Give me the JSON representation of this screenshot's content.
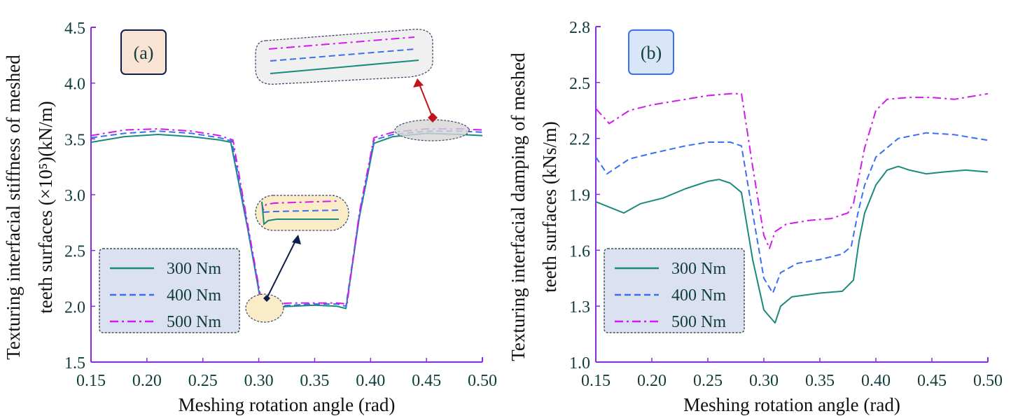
{
  "chart_data": [
    {
      "type": "line",
      "panel_label": "(a)",
      "xlabel": "Meshing rotation angle (rad)",
      "ylabel_line1": "Texturing interfacial stiffness of meshed",
      "ylabel_line2": "teeth surfaces (×10⁵)(kN/m)",
      "xlim": [
        0.15,
        0.5
      ],
      "ylim": [
        1.5,
        4.5
      ],
      "xticks": [
        "0.15",
        "0.20",
        "0.25",
        "0.30",
        "0.35",
        "0.40",
        "0.45",
        "0.50"
      ],
      "yticks": [
        "1.5",
        "2.0",
        "2.5",
        "3.0",
        "3.5",
        "4.0",
        "4.5"
      ],
      "legend": [
        "300 Nm",
        "400 Nm",
        "500 Nm"
      ],
      "legend_position": "bottom-left",
      "grid": false,
      "annotations": [
        "zoom inset near 0.45 rad (gray)",
        "zoom inset near 0.30 rad (yellow)"
      ],
      "series": [
        {
          "name": "300 Nm",
          "x": [
            0.15,
            0.18,
            0.21,
            0.24,
            0.265,
            0.275,
            0.29,
            0.303,
            0.31,
            0.33,
            0.35,
            0.37,
            0.378,
            0.39,
            0.403,
            0.42,
            0.45,
            0.48,
            0.5
          ],
          "y": [
            3.47,
            3.52,
            3.54,
            3.52,
            3.49,
            3.47,
            2.7,
            1.97,
            1.99,
            2.0,
            2.01,
            2.0,
            1.98,
            2.8,
            3.46,
            3.52,
            3.55,
            3.54,
            3.53
          ]
        },
        {
          "name": "400 Nm",
          "x": [
            0.15,
            0.18,
            0.21,
            0.24,
            0.265,
            0.276,
            0.29,
            0.303,
            0.31,
            0.33,
            0.35,
            0.37,
            0.378,
            0.39,
            0.403,
            0.42,
            0.45,
            0.48,
            0.5
          ],
          "y": [
            3.51,
            3.55,
            3.57,
            3.55,
            3.51,
            3.48,
            2.72,
            1.99,
            2.0,
            2.01,
            2.02,
            2.02,
            2.0,
            2.82,
            3.49,
            3.54,
            3.57,
            3.57,
            3.56
          ]
        },
        {
          "name": "500 Nm",
          "x": [
            0.15,
            0.18,
            0.21,
            0.24,
            0.265,
            0.277,
            0.29,
            0.303,
            0.31,
            0.33,
            0.35,
            0.37,
            0.379,
            0.39,
            0.403,
            0.42,
            0.45,
            0.48,
            0.5
          ],
          "y": [
            3.53,
            3.58,
            3.59,
            3.57,
            3.53,
            3.49,
            2.74,
            2.01,
            2.02,
            2.03,
            2.03,
            2.03,
            2.02,
            2.84,
            3.51,
            3.56,
            3.59,
            3.59,
            3.58
          ]
        }
      ]
    },
    {
      "type": "line",
      "panel_label": "(b)",
      "xlabel": "Meshing rotation angle (rad)",
      "ylabel_line1": "Texturing interfacial damping of meshed",
      "ylabel_line2": "teeth surfaces (kNs/m)",
      "xlim": [
        0.15,
        0.5
      ],
      "ylim": [
        1.0,
        2.8
      ],
      "xticks": [
        "0.15",
        "0.20",
        "0.25",
        "0.30",
        "0.35",
        "0.40",
        "0.45",
        "0.50"
      ],
      "yticks": [
        "1.0",
        "1.3",
        "1.6",
        "1.9",
        "2.2",
        "2.5",
        "2.8"
      ],
      "legend": [
        "300 Nm",
        "400 Nm",
        "500 Nm"
      ],
      "legend_position": "bottom-left",
      "grid": false,
      "series": [
        {
          "name": "300 Nm",
          "x": [
            0.15,
            0.175,
            0.19,
            0.21,
            0.23,
            0.25,
            0.26,
            0.27,
            0.28,
            0.29,
            0.3,
            0.31,
            0.315,
            0.325,
            0.35,
            0.37,
            0.38,
            0.385,
            0.39,
            0.4,
            0.41,
            0.42,
            0.43,
            0.445,
            0.46,
            0.48,
            0.5
          ],
          "y": [
            1.86,
            1.8,
            1.85,
            1.88,
            1.93,
            1.97,
            1.98,
            1.96,
            1.91,
            1.55,
            1.28,
            1.21,
            1.3,
            1.35,
            1.37,
            1.38,
            1.44,
            1.65,
            1.8,
            1.95,
            2.03,
            2.05,
            2.03,
            2.01,
            2.02,
            2.03,
            2.02
          ]
        },
        {
          "name": "400 Nm",
          "x": [
            0.15,
            0.16,
            0.18,
            0.2,
            0.23,
            0.25,
            0.265,
            0.27,
            0.28,
            0.29,
            0.3,
            0.308,
            0.315,
            0.33,
            0.35,
            0.37,
            0.378,
            0.384,
            0.39,
            0.4,
            0.42,
            0.445,
            0.47,
            0.5
          ],
          "y": [
            2.1,
            2.01,
            2.09,
            2.12,
            2.16,
            2.18,
            2.18,
            2.18,
            2.16,
            1.8,
            1.45,
            1.37,
            1.48,
            1.53,
            1.55,
            1.58,
            1.62,
            1.8,
            1.95,
            2.1,
            2.2,
            2.23,
            2.22,
            2.19
          ]
        },
        {
          "name": "500 Nm",
          "x": [
            0.15,
            0.162,
            0.18,
            0.2,
            0.23,
            0.25,
            0.27,
            0.28,
            0.29,
            0.3,
            0.305,
            0.31,
            0.32,
            0.34,
            0.36,
            0.375,
            0.38,
            0.385,
            0.39,
            0.4,
            0.41,
            0.43,
            0.45,
            0.47,
            0.5
          ],
          "y": [
            2.36,
            2.28,
            2.35,
            2.38,
            2.41,
            2.43,
            2.44,
            2.44,
            2.05,
            1.68,
            1.61,
            1.7,
            1.74,
            1.76,
            1.77,
            1.8,
            1.85,
            2.0,
            2.15,
            2.35,
            2.41,
            2.42,
            2.42,
            2.41,
            2.44
          ]
        }
      ]
    }
  ],
  "colors": {
    "300 Nm": "#1a8a7a",
    "400 Nm": "#3a6ff0",
    "500 Nm": "#d21aee",
    "axis": "#8a2be2",
    "tick_text": "#0f3d3a"
  },
  "series_styles": {
    "300 Nm": "solid",
    "400 Nm": "dashed",
    "500 Nm": "dashdot"
  }
}
